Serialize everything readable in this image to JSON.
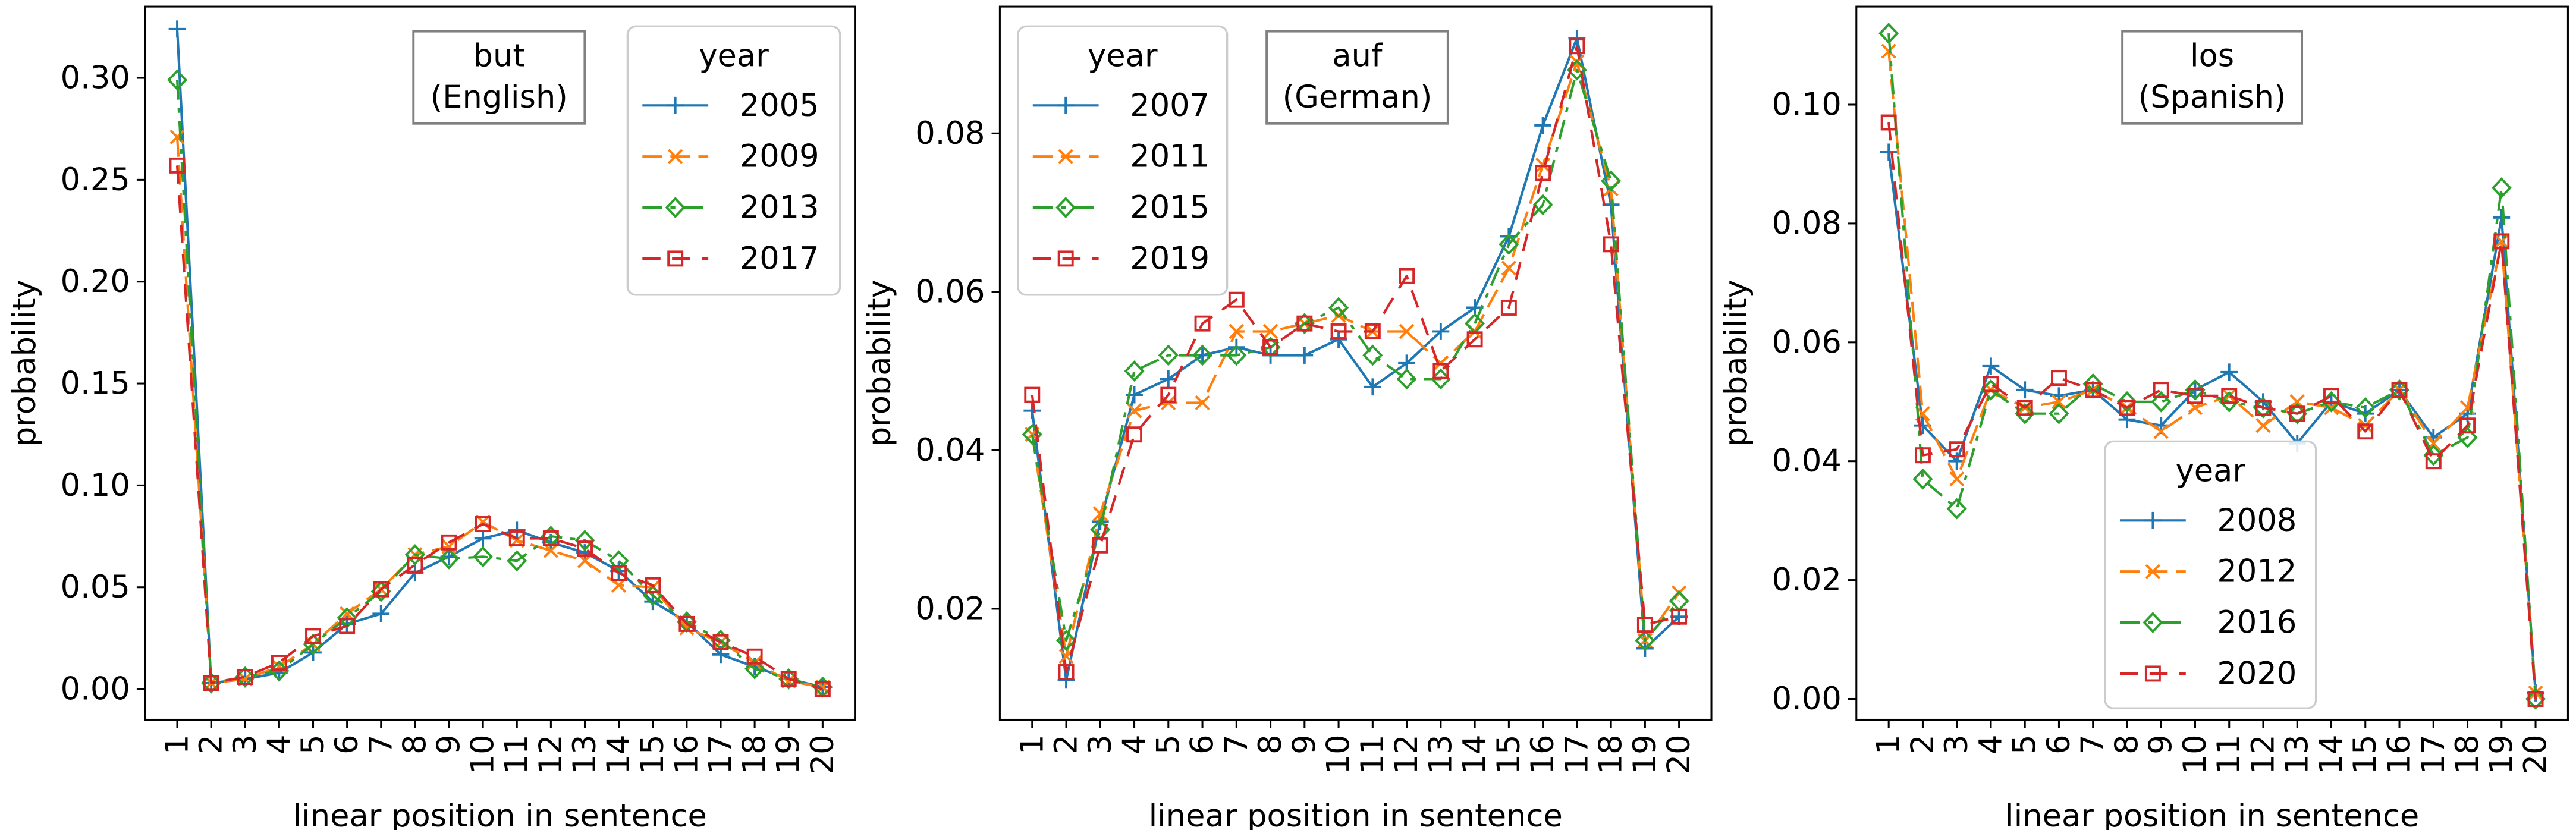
{
  "chart_data": [
    {
      "type": "line",
      "annotation": [
        "but",
        "(English)"
      ],
      "xlabel": "linear position in sentence",
      "ylabel": "probability",
      "x": [
        1,
        2,
        3,
        4,
        5,
        6,
        7,
        8,
        9,
        10,
        11,
        12,
        13,
        14,
        15,
        16,
        17,
        18,
        19,
        20
      ],
      "ylim": [
        -0.015,
        0.335
      ],
      "yticks": [
        0.0,
        0.05,
        0.1,
        0.15,
        0.2,
        0.25,
        0.3
      ],
      "ytick_labels": [
        "0.00",
        "0.05",
        "0.10",
        "0.15",
        "0.20",
        "0.25",
        "0.30"
      ],
      "legend_title": "year",
      "legend_position": "top-right",
      "series": [
        {
          "name": "2005",
          "values": [
            0.324,
            0.003,
            0.005,
            0.008,
            0.018,
            0.032,
            0.037,
            0.057,
            0.065,
            0.074,
            0.078,
            0.072,
            0.067,
            0.058,
            0.043,
            0.033,
            0.017,
            0.011,
            0.005,
            0.001
          ]
        },
        {
          "name": "2009",
          "values": [
            0.271,
            0.003,
            0.005,
            0.011,
            0.022,
            0.037,
            0.049,
            0.066,
            0.07,
            0.082,
            0.073,
            0.068,
            0.063,
            0.051,
            0.05,
            0.03,
            0.023,
            0.013,
            0.004,
            0.001
          ]
        },
        {
          "name": "2013",
          "values": [
            0.299,
            0.003,
            0.006,
            0.009,
            0.022,
            0.035,
            0.048,
            0.066,
            0.064,
            0.065,
            0.063,
            0.075,
            0.073,
            0.063,
            0.046,
            0.033,
            0.024,
            0.01,
            0.005,
            0.001
          ]
        },
        {
          "name": "2017",
          "values": [
            0.257,
            0.003,
            0.006,
            0.013,
            0.026,
            0.031,
            0.049,
            0.061,
            0.072,
            0.081,
            0.074,
            0.074,
            0.069,
            0.057,
            0.051,
            0.032,
            0.023,
            0.016,
            0.005,
            0.0
          ]
        }
      ]
    },
    {
      "type": "line",
      "annotation": [
        "auf",
        "(German)"
      ],
      "xlabel": "linear position in sentence",
      "ylabel": "probability",
      "x": [
        1,
        2,
        3,
        4,
        5,
        6,
        7,
        8,
        9,
        10,
        11,
        12,
        13,
        14,
        15,
        16,
        17,
        18,
        19,
        20
      ],
      "ylim": [
        0.006,
        0.096
      ],
      "yticks": [
        0.02,
        0.04,
        0.06,
        0.08
      ],
      "ytick_labels": [
        "0.02",
        "0.04",
        "0.06",
        "0.08"
      ],
      "legend_title": "year",
      "legend_position": "top-left",
      "series": [
        {
          "name": "2007",
          "values": [
            0.045,
            0.011,
            0.031,
            0.047,
            0.049,
            0.052,
            0.053,
            0.052,
            0.052,
            0.054,
            0.048,
            0.051,
            0.055,
            0.058,
            0.067,
            0.081,
            0.092,
            0.071,
            0.015,
            0.019
          ]
        },
        {
          "name": "2011",
          "values": [
            0.042,
            0.014,
            0.032,
            0.045,
            0.046,
            0.046,
            0.055,
            0.055,
            0.056,
            0.057,
            0.055,
            0.055,
            0.051,
            0.055,
            0.063,
            0.076,
            0.089,
            0.073,
            0.016,
            0.022
          ]
        },
        {
          "name": "2015",
          "values": [
            0.042,
            0.016,
            0.03,
            0.05,
            0.052,
            0.052,
            0.052,
            0.053,
            0.056,
            0.058,
            0.052,
            0.049,
            0.049,
            0.056,
            0.066,
            0.071,
            0.088,
            0.074,
            0.016,
            0.021
          ]
        },
        {
          "name": "2019",
          "values": [
            0.047,
            0.012,
            0.028,
            0.042,
            0.047,
            0.056,
            0.059,
            0.053,
            0.056,
            0.055,
            0.055,
            0.062,
            0.05,
            0.054,
            0.058,
            0.075,
            0.091,
            0.066,
            0.018,
            0.019
          ]
        }
      ]
    },
    {
      "type": "line",
      "annotation": [
        "los",
        "(Spanish)"
      ],
      "xlabel": "linear position in sentence",
      "ylabel": "probability",
      "x": [
        1,
        2,
        3,
        4,
        5,
        6,
        7,
        8,
        9,
        10,
        11,
        12,
        13,
        14,
        15,
        16,
        17,
        18,
        19,
        20
      ],
      "ylim": [
        -0.0035,
        0.1165
      ],
      "yticks": [
        0.0,
        0.02,
        0.04,
        0.06,
        0.08,
        0.1
      ],
      "ytick_labels": [
        "0.00",
        "0.02",
        "0.04",
        "0.06",
        "0.08",
        "0.10"
      ],
      "legend_title": "year",
      "legend_position": "bottom-center",
      "series": [
        {
          "name": "2008",
          "values": [
            0.092,
            0.046,
            0.04,
            0.056,
            0.052,
            0.051,
            0.052,
            0.047,
            0.046,
            0.052,
            0.055,
            0.05,
            0.043,
            0.05,
            0.048,
            0.052,
            0.044,
            0.048,
            0.081,
            0.001
          ]
        },
        {
          "name": "2012",
          "values": [
            0.109,
            0.048,
            0.037,
            0.052,
            0.049,
            0.05,
            0.052,
            0.049,
            0.045,
            0.049,
            0.051,
            0.046,
            0.05,
            0.049,
            0.046,
            0.052,
            0.043,
            0.049,
            0.077,
            0.001
          ]
        },
        {
          "name": "2016",
          "values": [
            0.112,
            0.037,
            0.032,
            0.052,
            0.048,
            0.048,
            0.053,
            0.05,
            0.05,
            0.052,
            0.05,
            0.049,
            0.048,
            0.05,
            0.049,
            0.052,
            0.041,
            0.044,
            0.086,
            0.0
          ]
        },
        {
          "name": "2020",
          "values": [
            0.097,
            0.041,
            0.042,
            0.053,
            0.049,
            0.054,
            0.052,
            0.049,
            0.052,
            0.051,
            0.051,
            0.049,
            0.048,
            0.051,
            0.045,
            0.052,
            0.04,
            0.046,
            0.077,
            0.0
          ]
        }
      ]
    }
  ],
  "colors": [
    "#1f77b4",
    "#ff7f0e",
    "#2ca02c",
    "#d62728"
  ],
  "markers": [
    "plus",
    "x",
    "diamond",
    "square"
  ],
  "line_styles": [
    "solid",
    "dash",
    "dash-dot",
    "dashed"
  ]
}
